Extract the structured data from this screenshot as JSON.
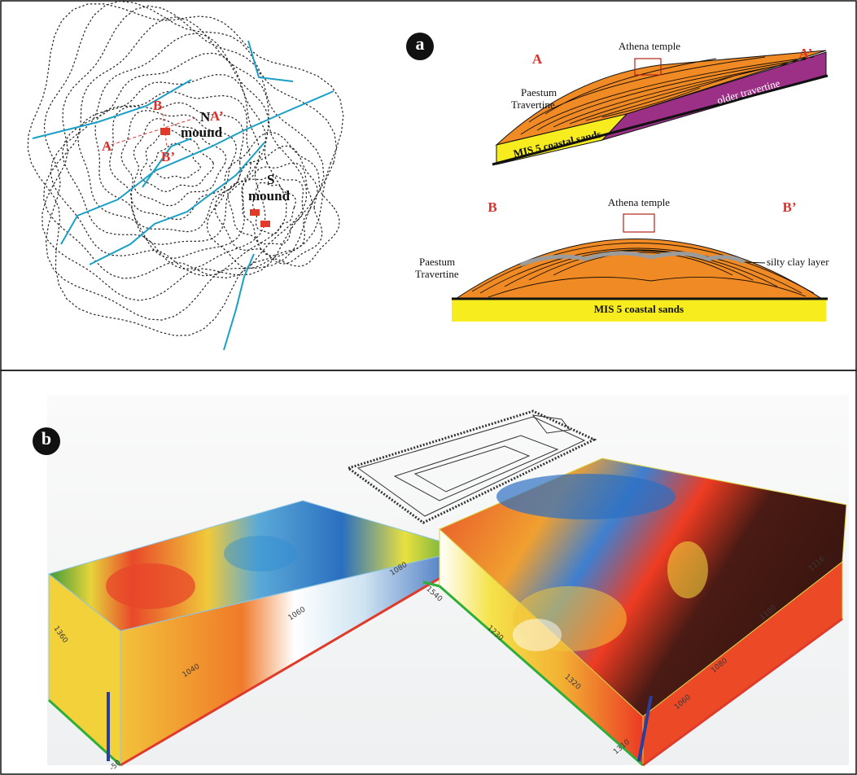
{
  "panel_a": {
    "label": "a",
    "map": {
      "section_b_start": "B",
      "section_a_start": "A",
      "n_mound_letter": "N",
      "section_a_end": "A’",
      "n_mound_word": "mound",
      "section_b_end": "B’",
      "s_mound_letter": "S",
      "s_mound_word": "mound"
    },
    "section_aa": {
      "start": "A",
      "end": "A’",
      "temple": "Athena temple",
      "travertine": [
        "Paestum",
        "Travertine"
      ],
      "older": "older travertine",
      "sands": "MIS 5 coastal sands"
    },
    "section_bb": {
      "start": "B",
      "end": "B’",
      "temple": "Athena temple",
      "travertine": [
        "Paestum",
        "Travertine"
      ],
      "clay": "silty clay layer",
      "sands": "MIS 5 coastal sands"
    }
  },
  "panel_b": {
    "label": "b",
    "left_block_ticks": [
      "1360",
      "1040",
      "1060",
      "1080",
      "-50"
    ],
    "right_block_ticks": [
      "1540",
      "1230",
      "1320",
      "1310",
      "1060",
      "1080",
      "1100",
      "1116"
    ]
  }
}
